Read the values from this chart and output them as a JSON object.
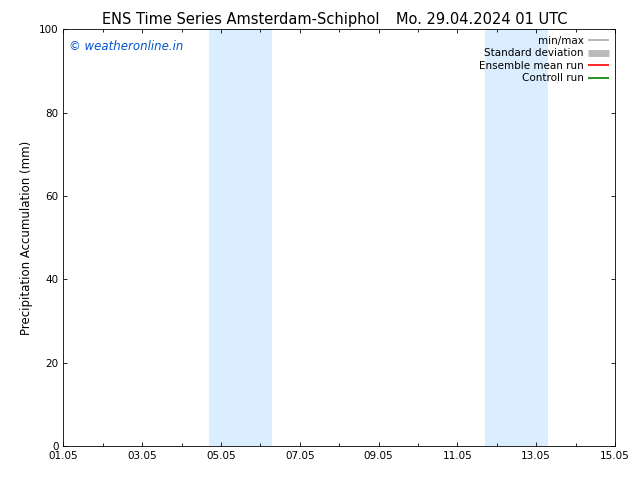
{
  "title_left": "ENS Time Series Amsterdam-Schiphol",
  "title_right": "Mo. 29.04.2024 01 UTC",
  "ylabel": "Precipitation Accumulation (mm)",
  "watermark": "© weatheronline.in",
  "watermark_color": "#0055cc",
  "xlim": [
    0,
    14
  ],
  "ylim": [
    0,
    100
  ],
  "yticks": [
    0,
    20,
    40,
    60,
    80,
    100
  ],
  "xtick_labels": [
    "01.05",
    "03.05",
    "05.05",
    "07.05",
    "09.05",
    "11.05",
    "13.05",
    "15.05"
  ],
  "xtick_positions": [
    0,
    2,
    4,
    6,
    8,
    10,
    12,
    14
  ],
  "shaded_regions": [
    {
      "xmin": 3.7,
      "xmax": 5.3,
      "color": "#dbeeff"
    },
    {
      "xmin": 10.7,
      "xmax": 12.3,
      "color": "#dbeeff"
    }
  ],
  "legend_entries": [
    {
      "label": "min/max",
      "color": "#aaaaaa",
      "lw": 1.2
    },
    {
      "label": "Standard deviation",
      "color": "#bbbbbb",
      "lw": 5
    },
    {
      "label": "Ensemble mean run",
      "color": "#ff0000",
      "lw": 1.2
    },
    {
      "label": "Controll run",
      "color": "#008000",
      "lw": 1.2
    }
  ],
  "bg_color": "#ffffff",
  "spine_color": "#000000",
  "title_fontsize": 10.5,
  "label_fontsize": 8.5,
  "tick_fontsize": 7.5,
  "watermark_fontsize": 8.5,
  "legend_fontsize": 7.5
}
